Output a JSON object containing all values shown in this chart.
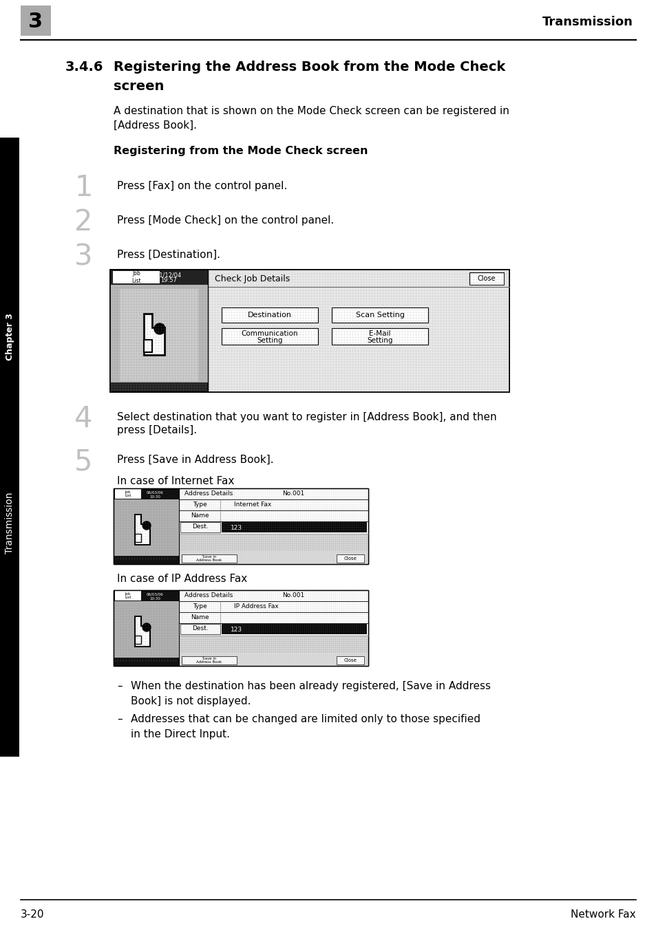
{
  "page_bg": "#ffffff",
  "header_chapter_num": "3",
  "header_chapter_bg": "#aaaaaa",
  "header_right": "Transmission",
  "footer_left": "3-20",
  "footer_right": "Network Fax",
  "section_num": "3.4.6",
  "section_title_line1": "Registering the Address Book from the Mode Check",
  "section_title_line2": "screen",
  "intro_text_line1": "A destination that is shown on the Mode Check screen can be registered in",
  "intro_text_line2": "[Address Book].",
  "sub_heading": "Registering from the Mode Check screen",
  "step1_num": "1",
  "step1_text": "Press [Fax] on the control panel.",
  "step2_num": "2",
  "step2_text": "Press [Mode Check] on the control panel.",
  "step3_num": "3",
  "step3_text": "Press [Destination].",
  "step4_num": "4",
  "step4_text_line1": "Select destination that you want to register in [Address Book], and then",
  "step4_text_line2": "press [Details].",
  "step5_num": "5",
  "step5_text": "Press [Save in Address Book].",
  "case1_label": "In case of Internet Fax",
  "case2_label": "In case of IP Address Fax",
  "note1": "When the destination has been already registered, [Save in Address",
  "note1b": "Book] is not displayed.",
  "note2": "Addresses that can be changed are limited only to those specified",
  "note2b": "in the Direct Input.",
  "sidebar_text": "Transmission",
  "sidebar_chapter": "Chapter 3"
}
